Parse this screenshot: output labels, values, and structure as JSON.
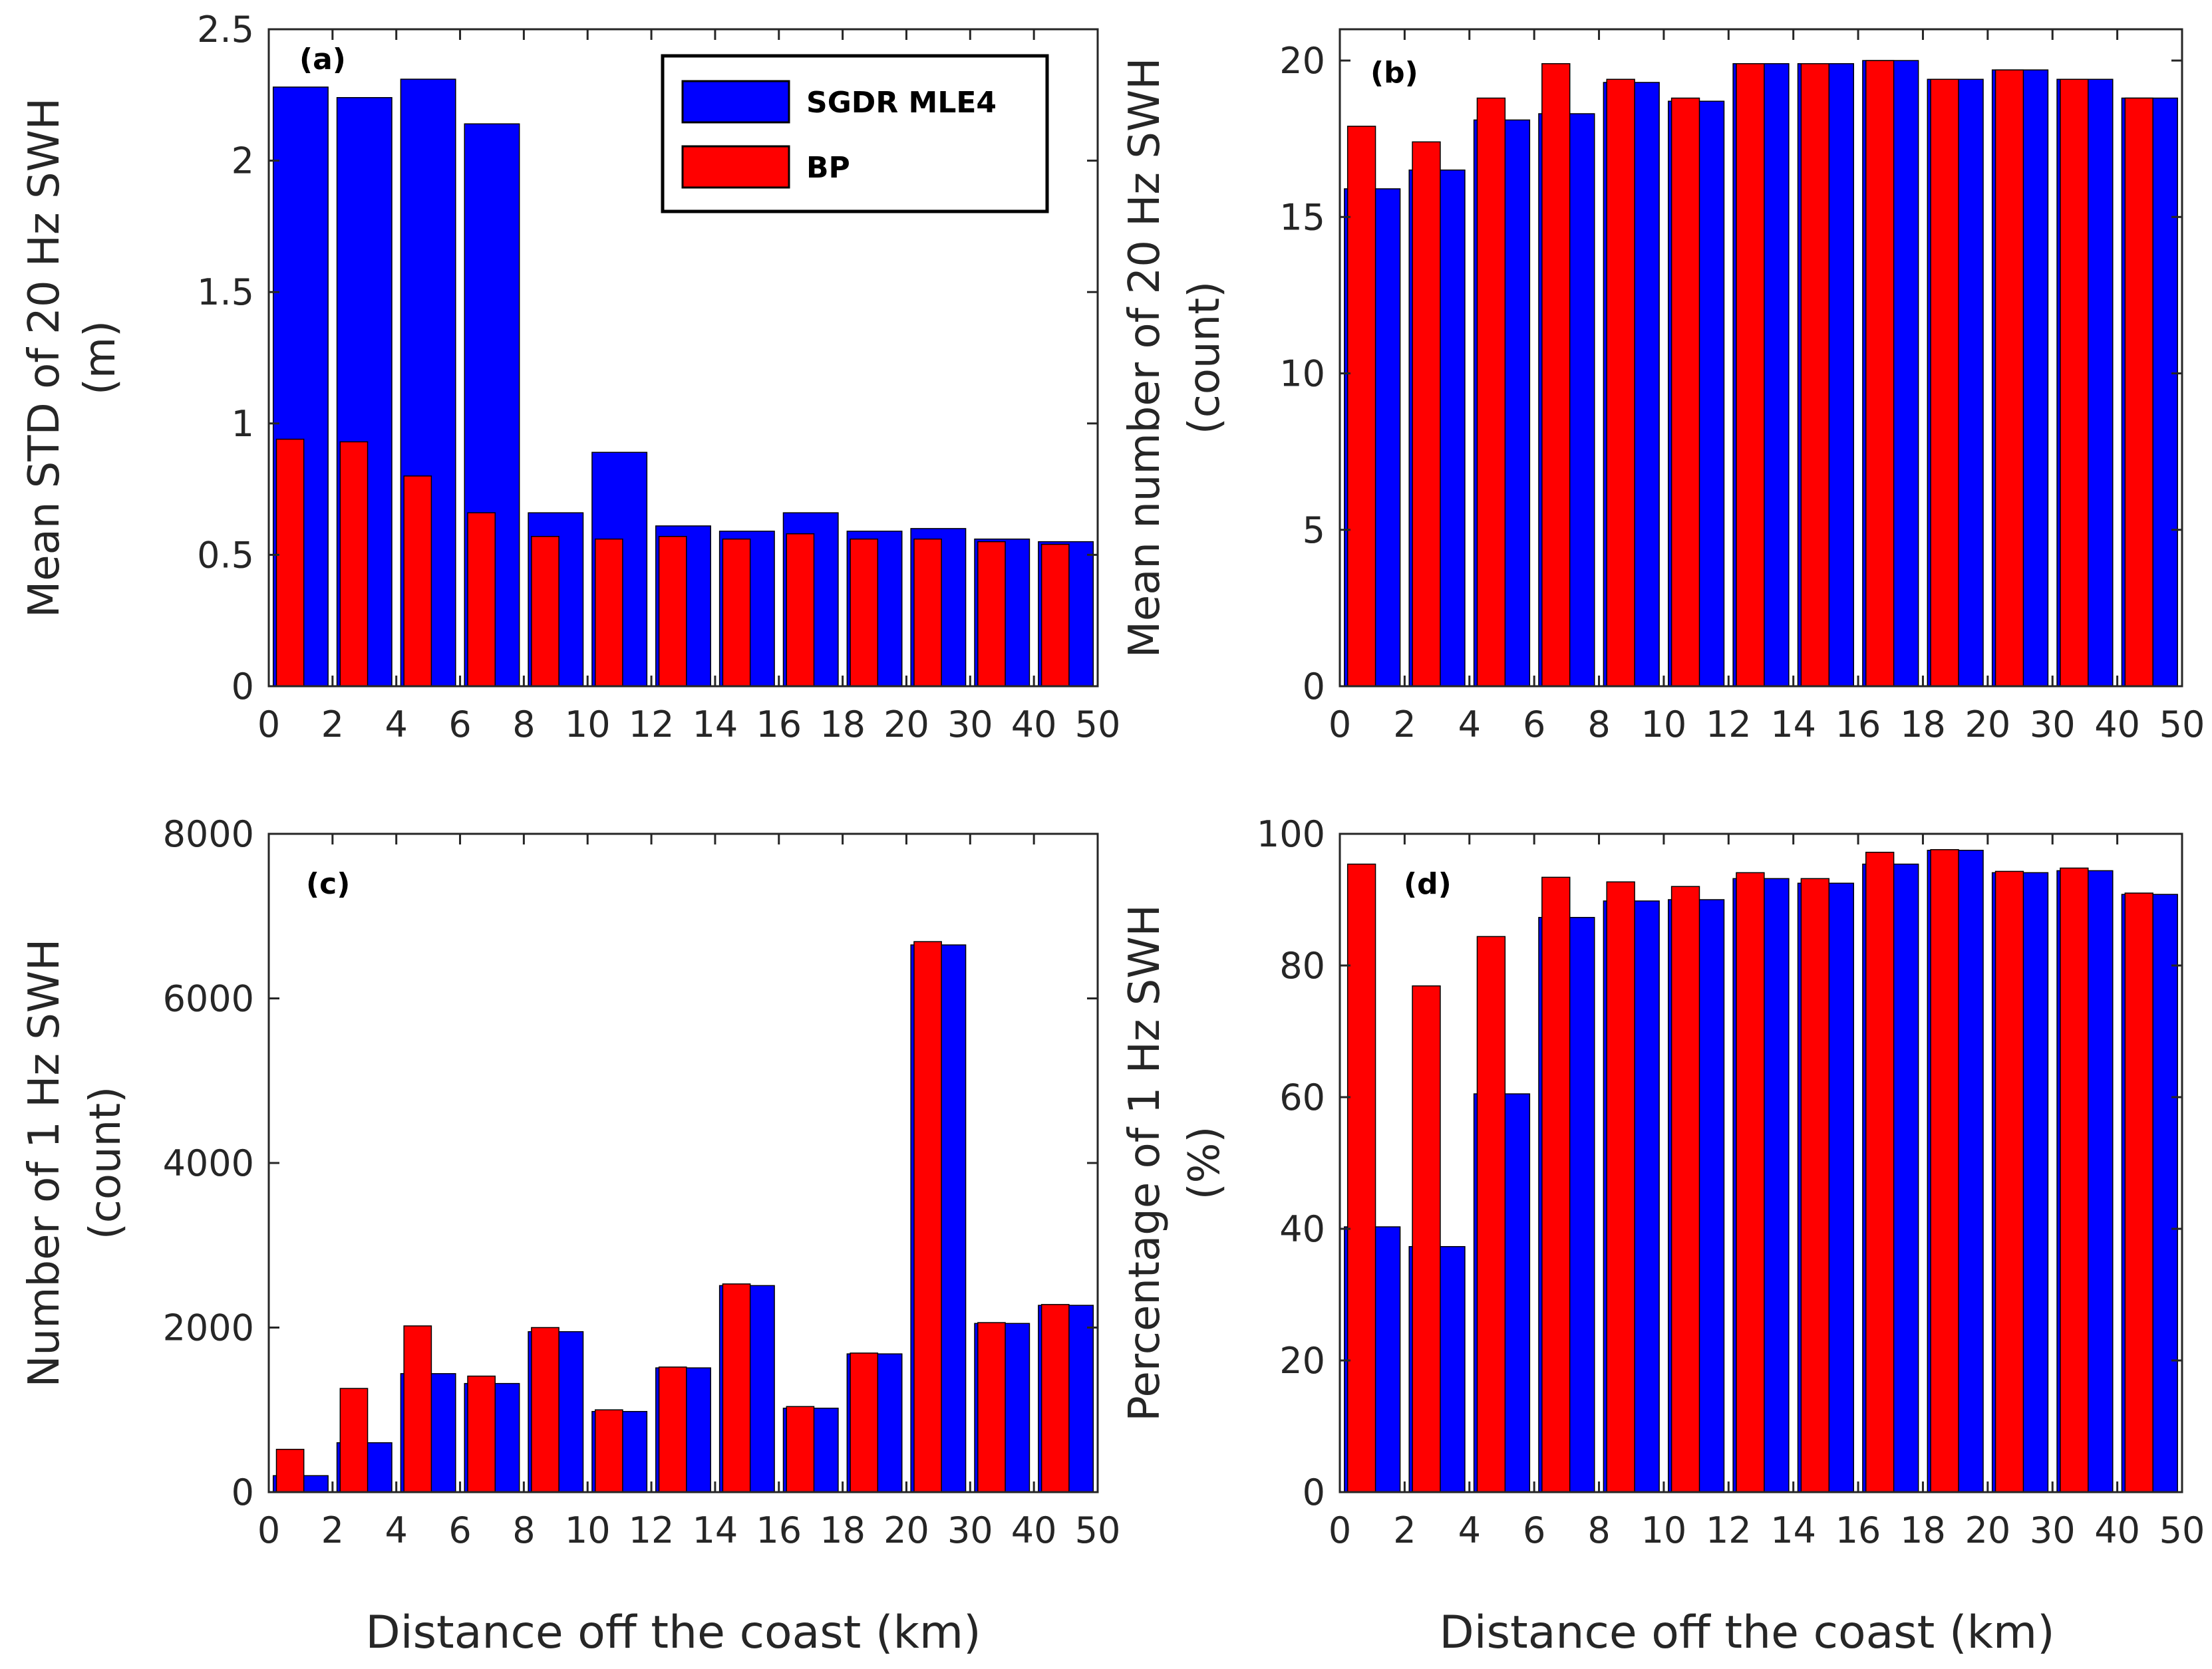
{
  "colors": {
    "sgdr": "#0000ff",
    "bp": "#ff0000",
    "axis": "#262626"
  },
  "legend": {
    "sgdr_label": "SGDR MLE4",
    "bp_label": "BP"
  },
  "xlabel_bottom_left": "Distance off the coast (km)",
  "xlabel_bottom_right": "Distance off the coast (km)",
  "chart_data": [
    {
      "type": "bar",
      "panel_label": "(a)",
      "ylabel_line1": "Mean STD of 20 Hz SWH",
      "ylabel_line2": "(m)",
      "ylim": [
        0,
        2.5
      ],
      "yticks": [
        "0",
        "0.5",
        "1",
        "1.5",
        "2",
        "2.5"
      ],
      "xticks": [
        "0",
        "2",
        "4",
        "6",
        "8",
        "10",
        "12",
        "14",
        "16",
        "18",
        "20",
        "30",
        "40",
        "50"
      ],
      "categories": [
        "0-2",
        "2-4",
        "4-6",
        "6-8",
        "8-10",
        "10-12",
        "12-14",
        "14-16",
        "16-18",
        "18-20",
        "20-30",
        "30-40",
        "40-50"
      ],
      "series": [
        {
          "name": "SGDR MLE4",
          "values": [
            2.28,
            2.24,
            2.31,
            2.14,
            0.66,
            0.89,
            0.61,
            0.59,
            0.66,
            0.59,
            0.6,
            0.56,
            0.55
          ]
        },
        {
          "name": "BP",
          "values": [
            0.94,
            0.93,
            0.8,
            0.66,
            0.57,
            0.56,
            0.57,
            0.56,
            0.58,
            0.56,
            0.56,
            0.55,
            0.54
          ]
        }
      ],
      "legend_position": "top-right"
    },
    {
      "type": "bar",
      "panel_label": "(b)",
      "ylabel_line1": "Mean number of 20 Hz SWH",
      "ylabel_line2": "(count)",
      "ylim": [
        0,
        21
      ],
      "yticks": [
        "0",
        "5",
        "10",
        "15",
        "20"
      ],
      "xticks": [
        "0",
        "2",
        "4",
        "6",
        "8",
        "10",
        "12",
        "14",
        "16",
        "18",
        "20",
        "30",
        "40",
        "50"
      ],
      "categories": [
        "0-2",
        "2-4",
        "4-6",
        "6-8",
        "8-10",
        "10-12",
        "12-14",
        "14-16",
        "16-18",
        "18-20",
        "20-30",
        "30-40",
        "40-50"
      ],
      "series": [
        {
          "name": "SGDR MLE4",
          "values": [
            15.9,
            16.5,
            18.1,
            18.3,
            19.3,
            18.7,
            19.9,
            19.9,
            20.0,
            19.4,
            19.7,
            19.4,
            18.8
          ]
        },
        {
          "name": "BP",
          "values": [
            17.9,
            17.4,
            18.8,
            19.9,
            19.4,
            18.8,
            19.9,
            19.9,
            20.0,
            19.4,
            19.7,
            19.4,
            18.8
          ]
        }
      ]
    },
    {
      "type": "bar",
      "panel_label": "(c)",
      "ylabel_line1": "Number of 1 Hz SWH",
      "ylabel_line2": "(count)",
      "ylim": [
        0,
        8000
      ],
      "yticks": [
        "0",
        "2000",
        "4000",
        "6000",
        "8000"
      ],
      "xticks": [
        "0",
        "2",
        "4",
        "6",
        "8",
        "10",
        "12",
        "14",
        "16",
        "18",
        "20",
        "30",
        "40",
        "50"
      ],
      "categories": [
        "0-2",
        "2-4",
        "4-6",
        "6-8",
        "8-10",
        "10-12",
        "12-14",
        "14-16",
        "16-18",
        "18-20",
        "20-30",
        "30-40",
        "40-50"
      ],
      "series": [
        {
          "name": "SGDR MLE4",
          "values": [
            200,
            600,
            1440,
            1320,
            1950,
            980,
            1510,
            2510,
            1020,
            1680,
            6650,
            2050,
            2270
          ]
        },
        {
          "name": "BP",
          "values": [
            520,
            1260,
            2020,
            1410,
            2000,
            1000,
            1520,
            2530,
            1040,
            1690,
            6690,
            2060,
            2280
          ]
        }
      ]
    },
    {
      "type": "bar",
      "panel_label": "(d)",
      "ylabel_line1": "Percentage of 1 Hz SWH",
      "ylabel_line2": "(%)",
      "ylim": [
        0,
        100
      ],
      "yticks": [
        "0",
        "20",
        "40",
        "60",
        "80",
        "100"
      ],
      "xticks": [
        "0",
        "2",
        "4",
        "6",
        "8",
        "10",
        "12",
        "14",
        "16",
        "18",
        "20",
        "30",
        "40",
        "50"
      ],
      "categories": [
        "0-2",
        "2-4",
        "4-6",
        "6-8",
        "8-10",
        "10-12",
        "12-14",
        "14-16",
        "16-18",
        "18-20",
        "20-30",
        "30-40",
        "40-50"
      ],
      "series": [
        {
          "name": "SGDR MLE4",
          "values": [
            40.3,
            37.3,
            60.5,
            87.3,
            89.8,
            90.0,
            93.2,
            92.5,
            95.4,
            97.5,
            94.1,
            94.4,
            90.8
          ]
        },
        {
          "name": "BP",
          "values": [
            95.4,
            76.9,
            84.4,
            93.4,
            92.7,
            92.0,
            94.1,
            93.2,
            97.2,
            97.6,
            94.3,
            94.8,
            91.0
          ]
        }
      ]
    }
  ]
}
